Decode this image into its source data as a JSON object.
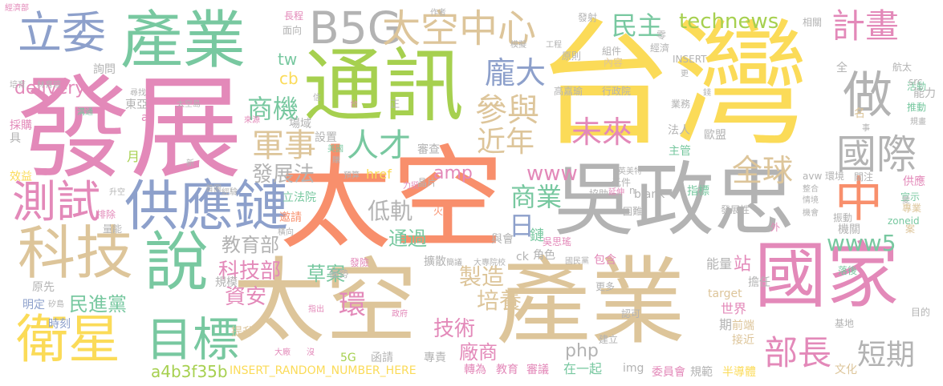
{
  "palette": {
    "pink": "#e389b9",
    "green": "#78c8a0",
    "yellow": "#fbdb58",
    "orange": "#f88f6c",
    "tan": "#ddc59a",
    "gray": "#b3b3b3",
    "lime": "#a6d04f",
    "blue": "#8da0cb"
  },
  "words": [
    {
      "text": "台灣",
      "color": "yellow"
    },
    {
      "text": "太空",
      "color": "orange"
    },
    {
      "text": "發展",
      "color": "pink"
    },
    {
      "text": "產業",
      "color": "tan"
    },
    {
      "text": "太空",
      "color": "tan"
    },
    {
      "text": "吳政忠",
      "color": "gray"
    },
    {
      "text": "通訊",
      "color": "lime"
    },
    {
      "text": "產業",
      "color": "green"
    },
    {
      "text": "國家",
      "color": "pink"
    },
    {
      "text": "供應鏈",
      "color": "blue"
    },
    {
      "text": "科技",
      "color": "tan"
    },
    {
      "text": "說",
      "color": "green"
    },
    {
      "text": "衛星",
      "color": "yellow"
    },
    {
      "text": "立委",
      "color": "blue"
    },
    {
      "text": "B5G",
      "color": "gray"
    },
    {
      "text": "太空中心",
      "color": "tan"
    },
    {
      "text": "目標",
      "color": "green"
    },
    {
      "text": "測試",
      "color": "pink"
    },
    {
      "text": "中",
      "color": "orange"
    },
    {
      "text": "做",
      "color": "gray"
    },
    {
      "text": "國際",
      "color": "gray"
    },
    {
      "text": "計畫",
      "color": "pink"
    },
    {
      "text": "民主",
      "color": "green"
    },
    {
      "text": "technews",
      "color": "lime"
    },
    {
      "text": "未來",
      "color": "pink"
    },
    {
      "text": "人才",
      "color": "green"
    },
    {
      "text": "參與",
      "color": "tan"
    },
    {
      "text": "龐大",
      "color": "blue"
    },
    {
      "text": "近年",
      "color": "tan"
    },
    {
      "text": "全球",
      "color": "tan"
    },
    {
      "text": "軍事",
      "color": "tan"
    },
    {
      "text": "商機",
      "color": "green"
    },
    {
      "text": "商業",
      "color": "green"
    },
    {
      "text": "www5",
      "color": "green"
    },
    {
      "text": "部長",
      "color": "pink"
    },
    {
      "text": "短期",
      "color": "gray"
    },
    {
      "text": "www",
      "color": "pink"
    },
    {
      "text": "日",
      "color": "blue"
    },
    {
      "text": "發展法",
      "color": "gray"
    },
    {
      "text": "低軌",
      "color": "gray"
    },
    {
      "text": "科技部",
      "color": "pink"
    },
    {
      "text": "教育部",
      "color": "gray"
    },
    {
      "text": "草案",
      "color": "green"
    },
    {
      "text": "環",
      "color": "pink"
    },
    {
      "text": "資安",
      "color": "pink"
    },
    {
      "text": "民進黨",
      "color": "green"
    },
    {
      "text": "製造",
      "color": "tan"
    },
    {
      "text": "培養",
      "color": "tan"
    },
    {
      "text": "技術",
      "color": "pink"
    },
    {
      "text": "廠商",
      "color": "pink"
    },
    {
      "text": "通過",
      "color": "green"
    },
    {
      "text": "delivery",
      "color": "pink"
    },
    {
      "text": "tw",
      "color": "green"
    },
    {
      "text": "cb",
      "color": "yellow"
    },
    {
      "text": "amp",
      "color": "pink"
    },
    {
      "text": "a4b3f35b",
      "color": "lime"
    },
    {
      "text": "INSERT_RANDOM_NUMBER_HERE",
      "color": "yellow"
    },
    {
      "text": "php",
      "color": "gray"
    },
    {
      "text": "鏈",
      "color": "green"
    },
    {
      "text": "吳思瑤",
      "color": "pink"
    },
    {
      "text": "法人",
      "color": "gray"
    },
    {
      "text": "歐盟",
      "color": "gray"
    },
    {
      "text": "主管",
      "color": "green"
    },
    {
      "text": "指標",
      "color": "green"
    },
    {
      "text": "blank",
      "color": "gray"
    },
    {
      "text": "href",
      "color": "yellow"
    },
    {
      "text": "審查",
      "color": "gray"
    },
    {
      "text": "設置",
      "color": "gray"
    },
    {
      "text": "場域",
      "color": "gray"
    },
    {
      "text": "立法院",
      "color": "green"
    },
    {
      "text": "邀請",
      "color": "orange"
    },
    {
      "text": "轉為",
      "color": "pink"
    },
    {
      "text": "教育",
      "color": "pink"
    },
    {
      "text": "審議",
      "color": "pink"
    },
    {
      "text": "在一起",
      "color": "green"
    },
    {
      "text": "委員會",
      "color": "pink"
    },
    {
      "text": "規範",
      "color": "gray"
    },
    {
      "text": "半導體",
      "color": "yellow"
    },
    {
      "text": "文化",
      "color": "tan"
    },
    {
      "text": "img",
      "color": "gray"
    },
    {
      "text": "能量",
      "color": "gray"
    },
    {
      "text": "站",
      "color": "pink"
    },
    {
      "text": "擔任",
      "color": "gray"
    },
    {
      "text": "前端",
      "color": "tan"
    },
    {
      "text": "接近",
      "color": "tan"
    },
    {
      "text": "世界",
      "color": "pink"
    },
    {
      "text": "target",
      "color": "tan"
    },
    {
      "text": "期",
      "color": "gray"
    },
    {
      "text": "包含",
      "color": "pink"
    },
    {
      "text": "角色",
      "color": "gray"
    },
    {
      "text": "ck",
      "color": "gray"
    },
    {
      "text": "與會",
      "color": "gray"
    },
    {
      "text": "擴散",
      "color": "gray"
    },
    {
      "text": "函請",
      "color": "gray"
    },
    {
      "text": "專責",
      "color": "gray"
    },
    {
      "text": "5G",
      "color": "lime"
    },
    {
      "text": "提升",
      "color": "tan"
    },
    {
      "text": "規模",
      "color": "gray"
    },
    {
      "text": "原先",
      "color": "gray"
    },
    {
      "text": "明定",
      "color": "blue"
    },
    {
      "text": "時刻",
      "color": "blue"
    },
    {
      "text": "月",
      "color": "lime"
    },
    {
      "text": "效益",
      "color": "yellow"
    },
    {
      "text": "採購",
      "color": "pink"
    },
    {
      "text": "具",
      "color": "gray"
    },
    {
      "text": "詢問",
      "color": "gray"
    },
    {
      "text": "東亞",
      "color": "gray"
    },
    {
      "text": "a",
      "color": "pink"
    },
    {
      "text": "經濟部",
      "color": "pink"
    },
    {
      "text": "長程",
      "color": "pink"
    },
    {
      "text": "面向",
      "color": "gray"
    },
    {
      "text": "作者",
      "color": "gray"
    },
    {
      "text": "發射",
      "color": "gray"
    },
    {
      "text": "相關",
      "color": "gray"
    },
    {
      "text": "組件",
      "color": "gray"
    },
    {
      "text": "內容",
      "color": "tan"
    },
    {
      "text": "INSERT",
      "color": "gray"
    },
    {
      "text": "全",
      "color": "gray"
    },
    {
      "text": "航太",
      "color": "gray"
    },
    {
      "text": "活動",
      "color": "green"
    },
    {
      "text": "能力",
      "color": "gray"
    },
    {
      "text": "src",
      "color": "gray"
    },
    {
      "text": "推動",
      "color": "green"
    },
    {
      "text": "名",
      "color": "tan"
    },
    {
      "text": "高嘉瑜",
      "color": "gray"
    },
    {
      "text": "行政院",
      "color": "gray"
    },
    {
      "text": "業務",
      "color": "gray"
    },
    {
      "text": "原則",
      "color": "gray"
    },
    {
      "text": "工程",
      "color": "gray"
    },
    {
      "text": "供應",
      "color": "pink"
    },
    {
      "text": "環境",
      "color": "gray"
    },
    {
      "text": "avw",
      "color": "gray"
    },
    {
      "text": "關注",
      "color": "gray"
    },
    {
      "text": "宣示",
      "color": "green"
    },
    {
      "text": "專業",
      "color": "tan"
    },
    {
      "text": "zoneid",
      "color": "green"
    },
    {
      "text": "案",
      "color": "tan"
    },
    {
      "text": "機關",
      "color": "gray"
    },
    {
      "text": "振動",
      "color": "gray"
    },
    {
      "text": "落後",
      "color": "green"
    },
    {
      "text": "目的",
      "color": "gray"
    },
    {
      "text": "基地",
      "color": "gray"
    },
    {
      "text": "國民黨",
      "color": "gray"
    },
    {
      "text": "更多",
      "color": "gray"
    },
    {
      "text": "認可",
      "color": "gray"
    },
    {
      "text": "建立",
      "color": "gray"
    },
    {
      "text": "發展性",
      "color": "gray"
    },
    {
      "text": "困難",
      "color": "gray"
    },
    {
      "text": "外",
      "color": "pink"
    },
    {
      "text": "元件",
      "color": "gray"
    },
    {
      "text": "n",
      "color": "gray"
    },
    {
      "text": "晶片",
      "color": "gray"
    },
    {
      "text": "預算",
      "color": "gray"
    },
    {
      "text": "美國",
      "color": "green"
    },
    {
      "text": "升空",
      "color": "gray"
    },
    {
      "text": "排除",
      "color": "pink"
    },
    {
      "text": "量能",
      "color": "gray"
    },
    {
      "text": "發險",
      "color": "pink"
    },
    {
      "text": "優勢",
      "color": "gray"
    },
    {
      "text": "火星",
      "color": "orange"
    },
    {
      "text": "力挺",
      "color": "pink"
    },
    {
      "text": "協助",
      "color": "gray"
    },
    {
      "text": "太空島",
      "color": "gray"
    },
    {
      "text": "林育瑄",
      "color": "gray"
    },
    {
      "text": "培育",
      "color": "gray"
    },
    {
      "text": "溝通",
      "color": "green"
    },
    {
      "text": "來源",
      "color": "pink"
    },
    {
      "text": "賺",
      "color": "gray"
    },
    {
      "text": "信",
      "color": "gray"
    },
    {
      "text": "台",
      "color": "pink"
    },
    {
      "text": "正",
      "color": "gray"
    },
    {
      "text": "更",
      "color": "gray"
    },
    {
      "text": "零",
      "color": "gray"
    },
    {
      "text": "經濟",
      "color": "gray"
    },
    {
      "text": "事",
      "color": "gray"
    },
    {
      "text": "規畫",
      "color": "gray"
    },
    {
      "text": "大廠",
      "color": "pink"
    },
    {
      "text": "沒",
      "color": "pink"
    },
    {
      "text": "指出",
      "color": "pink"
    },
    {
      "text": "政府",
      "color": "pink"
    },
    {
      "text": "大專院校",
      "color": "gray"
    },
    {
      "text": "簡議",
      "color": "gray"
    },
    {
      "text": "模擬",
      "color": "gray"
    },
    {
      "text": "錢",
      "color": "gray"
    },
    {
      "text": "整合",
      "color": "gray"
    },
    {
      "text": "情境",
      "color": "gray"
    },
    {
      "text": "機會",
      "color": "gray"
    },
    {
      "text": "愛",
      "color": "gray"
    },
    {
      "text": "首圖",
      "color": "gray"
    },
    {
      "text": "延伸",
      "color": "pink"
    },
    {
      "text": "橫向",
      "color": "gray"
    },
    {
      "text": "經驗",
      "color": "gray"
    },
    {
      "text": "新",
      "color": "gray"
    },
    {
      "text": "尋找",
      "color": "gray"
    },
    {
      "text": "英美特",
      "color": "gray"
    },
    {
      "text": "矽島",
      "color": "gray"
    }
  ]
}
